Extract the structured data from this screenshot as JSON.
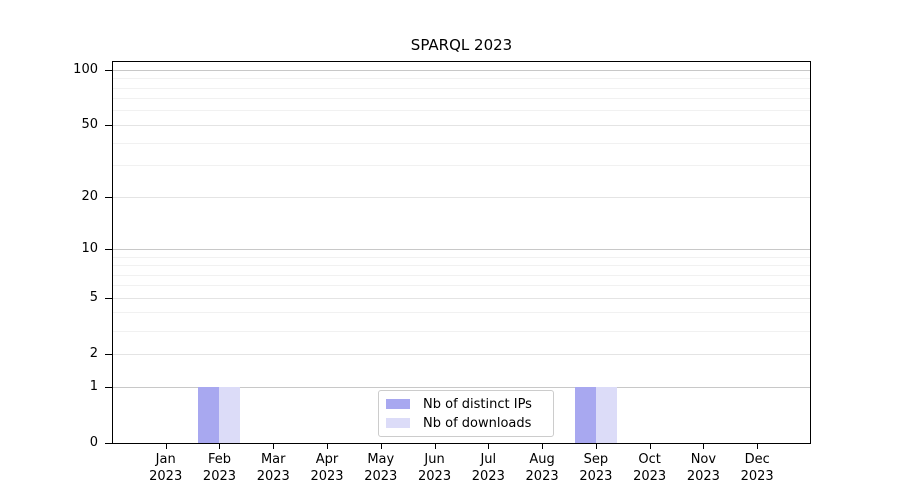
{
  "title": "SPARQL 2023",
  "chart_data": {
    "type": "bar",
    "title": "SPARQL 2023",
    "categories": [
      {
        "month": "Jan",
        "year": "2023"
      },
      {
        "month": "Feb",
        "year": "2023"
      },
      {
        "month": "Mar",
        "year": "2023"
      },
      {
        "month": "Apr",
        "year": "2023"
      },
      {
        "month": "May",
        "year": "2023"
      },
      {
        "month": "Jun",
        "year": "2023"
      },
      {
        "month": "Jul",
        "year": "2023"
      },
      {
        "month": "Aug",
        "year": "2023"
      },
      {
        "month": "Sep",
        "year": "2023"
      },
      {
        "month": "Oct",
        "year": "2023"
      },
      {
        "month": "Nov",
        "year": "2023"
      },
      {
        "month": "Dec",
        "year": "2023"
      }
    ],
    "series": [
      {
        "name": "Nb of distinct IPs",
        "color": "#a8a8f0",
        "values": [
          0,
          1,
          0,
          0,
          0,
          0,
          0,
          0,
          1,
          0,
          0,
          0
        ]
      },
      {
        "name": "Nb of downloads",
        "color": "#dcdcf8",
        "values": [
          0,
          1,
          0,
          0,
          0,
          0,
          0,
          0,
          1,
          0,
          0,
          0
        ]
      }
    ],
    "yticks": [
      0,
      1,
      2,
      5,
      10,
      20,
      50,
      100
    ],
    "minor_gridline_values": [
      3,
      4,
      6,
      7,
      8,
      9,
      30,
      40,
      60,
      70,
      80,
      90
    ],
    "decade_gridline_values": [
      1,
      10,
      100
    ],
    "scale": "log(1+x)",
    "ylim": [
      0,
      111
    ],
    "grid": true,
    "legend": {
      "location": "lower center"
    }
  },
  "colors": {
    "distinct_ips": "#a8a8f0",
    "downloads": "#dcdcf8",
    "grid_decade": "#c8c8c8",
    "grid_major": "#e4e4e4",
    "grid_minor": "#f1f1f1",
    "axis": "#000000",
    "legend_border": "#cccccc"
  }
}
